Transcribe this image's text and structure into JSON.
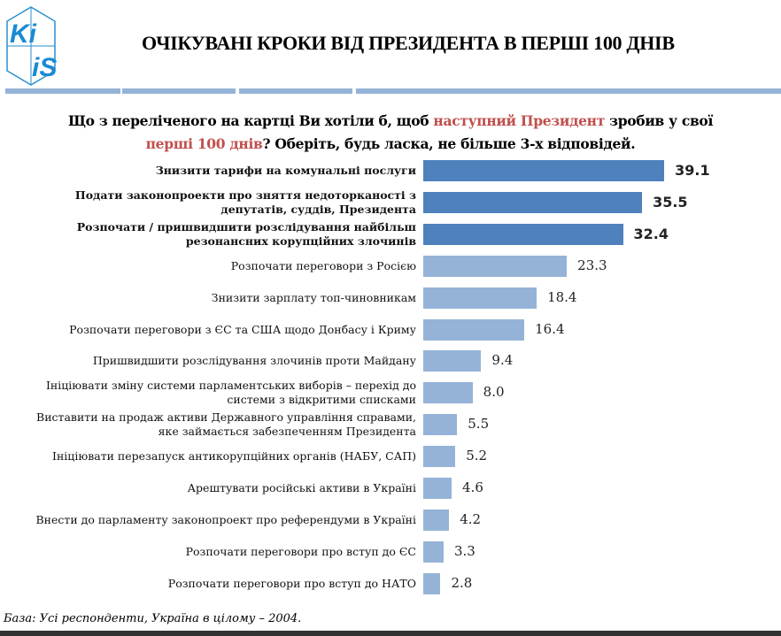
{
  "logo": {
    "text": "KIIS"
  },
  "title": "ОЧІКУВАНІ КРОКИ ВІД ПРЕЗИДЕНТА В ПЕРШІ 100 ДНІВ",
  "question": {
    "part1": "Що з переліченого на картці Ви хотіли б, щоб ",
    "highlight1": "наступний Президент",
    "part2": " зробив у свої ",
    "highlight2": "перші 100 днів",
    "part3": "? Оберіть, будь ласка, не більше 3-х відповідей."
  },
  "footnote": "База: Усі респонденти, Україна в цілому – 2004.",
  "colors": {
    "top_bars": "#4f81bd",
    "other_bars": "#95b3d7",
    "highlight": "#c0504d"
  },
  "chart_data": {
    "type": "bar",
    "orientation": "horizontal",
    "categories": [
      "Знизити тарифи на комунальні послуги",
      "Подати законопроекти про зняття недоторканості з депутатів, суддів, Президента",
      "Розпочати / пришвидшити розслідування найбільш резонансних корупційних злочинів",
      "Розпочати переговори з Росією",
      "Знизити зарплату топ-чиновникам",
      "Розпочати переговори з ЄС та США щодо Донбасу і Криму",
      "Пришвидшити розслідування злочинів проти Майдану",
      "Ініціювати зміну системи парламентських виборів – перехід до системи з відкритими списками",
      "Виставити на продаж активи Державного управління справами, яке займається забезпеченням Президента",
      "Ініціювати перезапуск антикорупційних органів (НАБУ, САП)",
      "Арештувати російські активи в Україні",
      "Внести до парламенту законопроект про референдуми в Україні",
      "Розпочати переговори про вступ до ЄС",
      "Розпочати переговори про вступ до НАТО"
    ],
    "values": [
      39.1,
      35.5,
      32.4,
      23.3,
      18.4,
      16.4,
      9.4,
      8.0,
      5.5,
      5.2,
      4.6,
      4.2,
      3.3,
      2.8
    ],
    "value_labels": [
      "39.1",
      "35.5",
      "32.4",
      "23.3",
      "18.4",
      "16.4",
      "9.4",
      "8.0",
      "5.5",
      "5.2",
      "4.6",
      "4.2",
      "3.3",
      "2.8"
    ],
    "highlighted_top": 3,
    "grid": false
  }
}
